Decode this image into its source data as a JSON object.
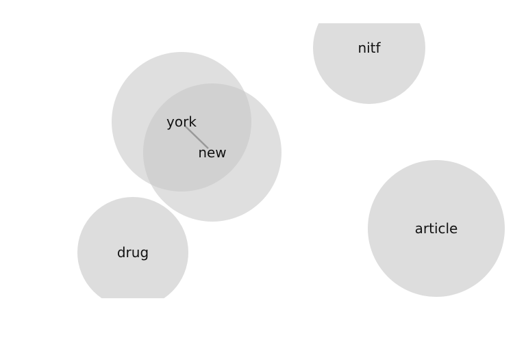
{
  "nodes": [
    {
      "id": "york",
      "label": "york"
    },
    {
      "id": "new",
      "label": "new"
    },
    {
      "id": "nitf",
      "label": "nitf"
    },
    {
      "id": "drug",
      "label": "drug"
    },
    {
      "id": "article",
      "label": "article"
    }
  ],
  "edges": [
    {
      "from": "york",
      "to": "new"
    }
  ],
  "colors": {
    "bubble": "#dddddd",
    "edge": "#999999",
    "label": "#111111"
  }
}
